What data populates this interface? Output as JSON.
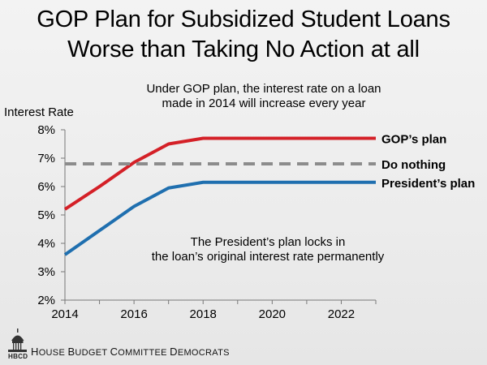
{
  "title": {
    "line1": "GOP Plan for Subsidized Student Loans",
    "line2": "Worse than Taking No Action at all"
  },
  "subtitle": {
    "line1": "Under GOP plan, the interest rate on a loan",
    "line2": "made in 2014 will increase every year"
  },
  "president_note": {
    "line1": "The President’s plan locks in",
    "line2": "the loan’s original interest rate permanently"
  },
  "footer": {
    "logo_text": "HBCD",
    "org_first": "H",
    "org_rest_1": "OUSE ",
    "org_b": "B",
    "org_rest_2": "UDGET ",
    "org_c": "C",
    "org_rest_3": "OMMITTEE ",
    "org_d": "D",
    "org_rest_4": "EMOCRATS"
  },
  "chart_data": {
    "type": "line",
    "title": "GOP Plan for Subsidized Student Loans Worse than Taking No Action at all",
    "xlabel": "",
    "ylabel": "Interest Rate",
    "xlim": [
      2014,
      2023
    ],
    "ylim": [
      2,
      8
    ],
    "x_ticks": [
      2014,
      2016,
      2018,
      2020,
      2022
    ],
    "x_tick_labels": [
      "2014",
      "2016",
      "2018",
      "2020",
      "2022"
    ],
    "y_ticks": [
      2,
      3,
      4,
      5,
      6,
      7,
      8
    ],
    "y_tick_labels": [
      "2%",
      "3%",
      "4%",
      "5%",
      "6%",
      "7%",
      "8%"
    ],
    "grid": false,
    "x": [
      2014,
      2015,
      2016,
      2017,
      2018,
      2019,
      2020,
      2021,
      2022,
      2023
    ],
    "series": [
      {
        "name": "GOP’s plan",
        "color": "#d42027",
        "style": "solid",
        "values": [
          5.2,
          6.0,
          6.85,
          7.5,
          7.7,
          7.7,
          7.7,
          7.7,
          7.7,
          7.7
        ]
      },
      {
        "name": "Do nothing",
        "color": "#8c8c8c",
        "style": "dashed",
        "values": [
          6.8,
          6.8,
          6.8,
          6.8,
          6.8,
          6.8,
          6.8,
          6.8,
          6.8,
          6.8
        ]
      },
      {
        "name": "President’s plan",
        "color": "#1f6faf",
        "style": "solid",
        "values": [
          3.6,
          4.45,
          5.3,
          5.95,
          6.15,
          6.15,
          6.15,
          6.15,
          6.15,
          6.15
        ]
      }
    ]
  }
}
